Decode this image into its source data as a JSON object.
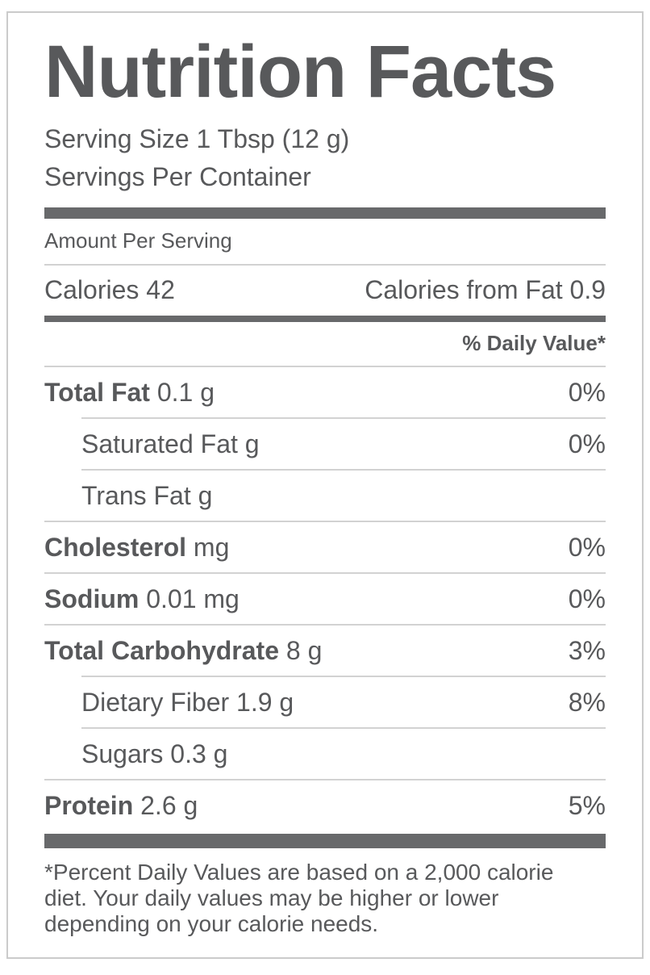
{
  "label": {
    "title": "Nutrition Facts",
    "serving_size": "Serving Size 1 Tbsp (12 g)",
    "servings_per_container": "Servings Per Container",
    "amount_per_serving": "Amount Per Serving",
    "calories": {
      "label": "Calories",
      "value": "42",
      "from_fat_label": "Calories from Fat",
      "from_fat_value": "0.9"
    },
    "daily_value_header": "% Daily Value*",
    "rows": [
      {
        "name": "Total Fat",
        "amount": "0.1 g",
        "dv": "0%",
        "bold": true,
        "indent": false,
        "divider_above": "none"
      },
      {
        "name": "Saturated Fat",
        "amount": "g",
        "dv": "0%",
        "bold": false,
        "indent": true,
        "divider_above": "indent"
      },
      {
        "name": "Trans Fat",
        "amount": "g",
        "dv": "",
        "bold": false,
        "indent": true,
        "divider_above": "indent"
      },
      {
        "name": "Cholesterol",
        "amount": "mg",
        "dv": "0%",
        "bold": true,
        "indent": false,
        "divider_above": "full"
      },
      {
        "name": "Sodium",
        "amount": "0.01 mg",
        "dv": "0%",
        "bold": true,
        "indent": false,
        "divider_above": "full"
      },
      {
        "name": "Total Carbohydrate",
        "amount": "8 g",
        "dv": "3%",
        "bold": true,
        "indent": false,
        "divider_above": "full"
      },
      {
        "name": "Dietary Fiber",
        "amount": "1.9 g",
        "dv": "8%",
        "bold": false,
        "indent": true,
        "divider_above": "indent"
      },
      {
        "name": "Sugars",
        "amount": "0.3 g",
        "dv": "",
        "bold": false,
        "indent": true,
        "divider_above": "indent"
      },
      {
        "name": "Protein",
        "amount": "2.6 g",
        "dv": "5%",
        "bold": true,
        "indent": false,
        "divider_above": "full"
      }
    ],
    "footnote_lines": [
      "*Percent Daily Values are based on a 2,000 calorie",
      "diet. Your daily values may be higher or lower",
      "depending on your calorie needs."
    ],
    "colors": {
      "text": "#58595b",
      "bar": "#68696b",
      "divider": "#d2d2d2",
      "border": "#cbcbcb"
    }
  }
}
